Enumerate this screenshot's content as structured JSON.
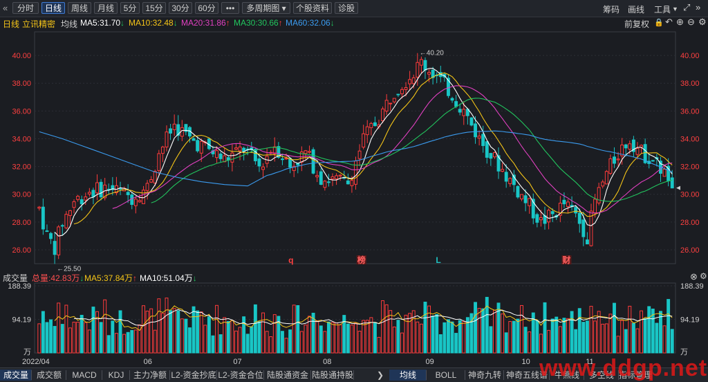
{
  "toolbar": {
    "back_icon": "double-chevron-left-icon",
    "tabs": [
      "分时",
      "日线",
      "周线",
      "月线",
      "5分",
      "15分",
      "30分",
      "60分",
      "•••",
      "多周期图",
      "个股资料",
      "诊股"
    ],
    "active_tab": "日线",
    "right_items": [
      "筹码",
      "画线",
      "工具"
    ]
  },
  "legend": {
    "period": "日线",
    "stock": "立讯精密",
    "ma_label": "均线",
    "items": [
      {
        "label": "MA5:31.70",
        "arrow": "↓",
        "color": "#ffffff",
        "arrow_color": "#22c55e"
      },
      {
        "label": "MA10:32.48",
        "arrow": "↓",
        "color": "#f5c518",
        "arrow_color": "#22c55e"
      },
      {
        "label": "MA20:31.86",
        "arrow": "↑",
        "color": "#e040c0",
        "arrow_color": "#ff4040"
      },
      {
        "label": "MA30:30.66",
        "arrow": "↑",
        "color": "#22c55e",
        "arrow_color": "#ff4040"
      },
      {
        "label": "MA60:32.06",
        "arrow": "↓",
        "color": "#3b9cf0",
        "arrow_color": "#22c55e"
      }
    ],
    "right_label": "前复权"
  },
  "volume_legend": {
    "title": "成交量",
    "items": [
      {
        "label": "总量:42.83万",
        "arrow": "↓",
        "color": "#ff5050",
        "arrow_color": "#22c55e"
      },
      {
        "label": "MA5:37.84万",
        "arrow": "↑",
        "color": "#f5c518",
        "arrow_color": "#ff4040"
      },
      {
        "label": "MA10:51.04万",
        "arrow": "↓",
        "color": "#ffffff",
        "arrow_color": "#22c55e"
      }
    ]
  },
  "chart_data": [
    {
      "type": "candlestick",
      "yticks": [
        26.0,
        28.0,
        30.0,
        32.0,
        34.0,
        36.0,
        38.0,
        40.0
      ],
      "ylim": [
        25.0,
        41.5
      ],
      "high_annotation": "40.20",
      "low_annotation": "25.50",
      "last_close": 30.45,
      "markers": [
        {
          "label": "q",
          "month_pos": "07-15",
          "color": "#ff4040",
          "boxed": false
        },
        {
          "label": "榜",
          "month_pos": "08-15",
          "color": "#ff6060",
          "boxed": true
        },
        {
          "label": "L",
          "month_pos": "09-15",
          "color": "#20c0c0",
          "boxed": false
        },
        {
          "label": "财",
          "month_pos": "10-31",
          "color": "#ff6060",
          "boxed": true
        }
      ],
      "ma_series": [
        "MA5",
        "MA10",
        "MA20",
        "MA30",
        "MA60"
      ]
    },
    {
      "type": "bar",
      "name": "成交量",
      "yticks_left": [
        "188.39",
        "94.19",
        "万"
      ],
      "yticks_right": [
        "188.39",
        "94.19",
        "万"
      ],
      "ylim": [
        0,
        188.39
      ],
      "ma_series": [
        "MA5",
        "MA10"
      ]
    }
  ],
  "xaxis": {
    "labels": [
      "2022/04",
      "06",
      "07",
      "08",
      "09",
      "10",
      "11"
    ]
  },
  "bottom_tabs": {
    "left": [
      "成交量",
      "成交额",
      "MACD",
      "KDJ",
      "主力净额",
      "L2-资金抄底",
      "L2-资金合位",
      "陆股通资金",
      "陆股通持股"
    ],
    "left_active": "成交量",
    "right": [
      "均线",
      "BOLL",
      "神奇九转",
      "神奇五线谱",
      "牛熊线",
      "多空线",
      "指标管理"
    ],
    "right_active": "均线"
  },
  "watermark": "www.ddgp.net"
}
